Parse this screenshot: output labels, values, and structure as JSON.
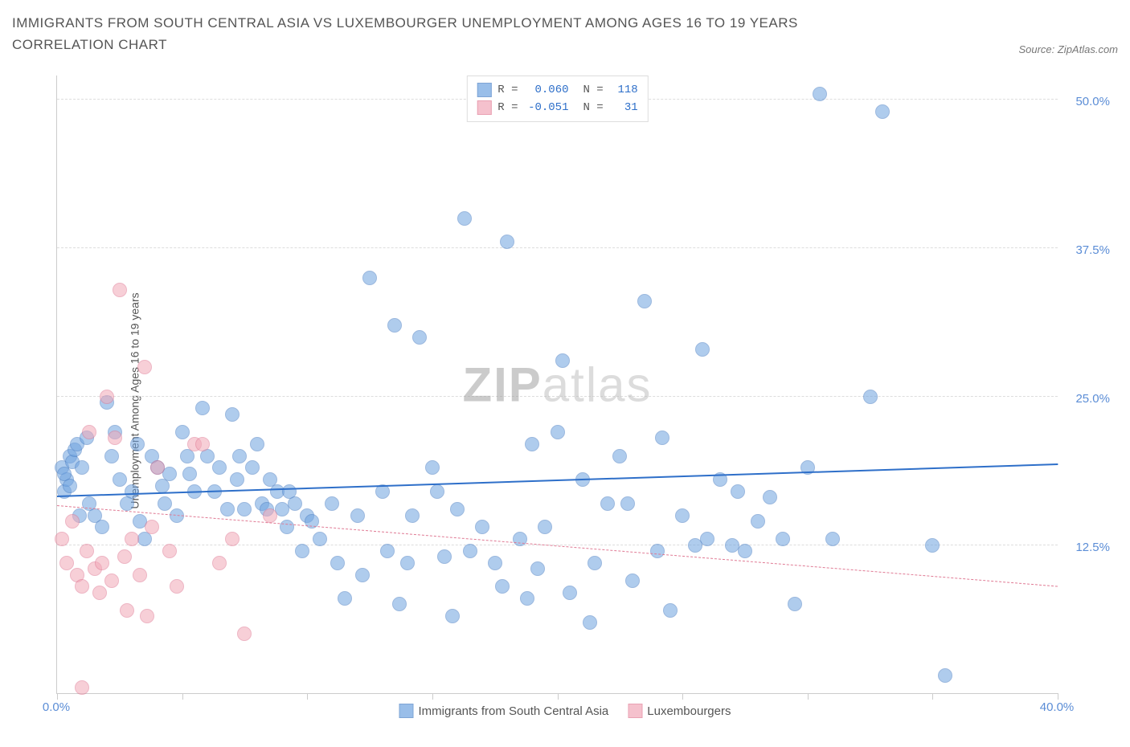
{
  "title": "IMMIGRANTS FROM SOUTH CENTRAL ASIA VS LUXEMBOURGER UNEMPLOYMENT AMONG AGES 16 TO 19 YEARS CORRELATION CHART",
  "source": "Source: ZipAtlas.com",
  "watermark_a": "ZIP",
  "watermark_b": "atlas",
  "chart": {
    "type": "scatter",
    "xlim": [
      0,
      40
    ],
    "ylim": [
      0,
      52
    ],
    "xticks": [
      0,
      5,
      10,
      15,
      20,
      25,
      30,
      35,
      40
    ],
    "xaxis_labels": [
      {
        "v": 0,
        "t": "0.0%"
      },
      {
        "v": 40,
        "t": "40.0%"
      }
    ],
    "y_gridlines": [
      12.5,
      25.0,
      37.5,
      50.0
    ],
    "yaxis_labels": [
      {
        "v": 12.5,
        "t": "12.5%"
      },
      {
        "v": 25.0,
        "t": "25.0%"
      },
      {
        "v": 37.5,
        "t": "37.5%"
      },
      {
        "v": 50.0,
        "t": "50.0%"
      }
    ],
    "ylabel": "Unemployment Among Ages 16 to 19 years",
    "marker_radius": 9,
    "marker_opacity": 0.55,
    "background_color": "#ffffff",
    "grid_color": "#dddddd",
    "series": [
      {
        "name": "Immigrants from South Central Asia",
        "color": "#6fa3e0",
        "border": "#4a7fc4",
        "R": "0.060",
        "N": "118",
        "trend": {
          "x1": 0,
          "y1": 16.5,
          "x2": 40,
          "y2": 19.2,
          "color": "#2e6fc9",
          "solid": true
        },
        "points": [
          [
            0.2,
            19
          ],
          [
            0.3,
            17
          ],
          [
            0.5,
            20
          ],
          [
            0.4,
            18
          ],
          [
            0.6,
            19.5
          ],
          [
            0.3,
            18.5
          ],
          [
            0.7,
            20.5
          ],
          [
            0.5,
            17.5
          ],
          [
            0.8,
            21
          ],
          [
            1.0,
            19
          ],
          [
            1.2,
            21.5
          ],
          [
            1.5,
            15
          ],
          [
            2.0,
            24.5
          ],
          [
            2.2,
            20
          ],
          [
            2.5,
            18
          ],
          [
            3.0,
            17
          ],
          [
            3.2,
            21
          ],
          [
            3.5,
            13
          ],
          [
            4.0,
            19
          ],
          [
            4.2,
            17.5
          ],
          [
            4.5,
            18.5
          ],
          [
            5.0,
            22
          ],
          [
            5.2,
            20
          ],
          [
            5.5,
            17
          ],
          [
            5.8,
            24
          ],
          [
            6.0,
            20
          ],
          [
            6.5,
            19
          ],
          [
            7.0,
            23.5
          ],
          [
            7.2,
            18
          ],
          [
            7.5,
            15.5
          ],
          [
            8.0,
            21
          ],
          [
            8.2,
            16
          ],
          [
            8.4,
            15.5
          ],
          [
            8.8,
            17
          ],
          [
            9.0,
            15.5
          ],
          [
            9.2,
            14
          ],
          [
            9.5,
            16
          ],
          [
            10.0,
            15
          ],
          [
            10.2,
            14.5
          ],
          [
            10.5,
            13
          ],
          [
            11.0,
            16
          ],
          [
            11.2,
            11
          ],
          [
            11.5,
            8
          ],
          [
            12.0,
            15
          ],
          [
            12.2,
            10
          ],
          [
            12.5,
            35
          ],
          [
            13.0,
            17
          ],
          [
            13.2,
            12
          ],
          [
            13.5,
            31
          ],
          [
            13.7,
            7.5
          ],
          [
            14.0,
            11
          ],
          [
            14.2,
            15
          ],
          [
            14.5,
            30
          ],
          [
            15.0,
            19
          ],
          [
            15.2,
            17
          ],
          [
            15.5,
            11.5
          ],
          [
            15.8,
            6.5
          ],
          [
            16.0,
            15.5
          ],
          [
            16.3,
            40
          ],
          [
            16.5,
            12
          ],
          [
            17.0,
            14
          ],
          [
            17.5,
            11
          ],
          [
            17.8,
            9
          ],
          [
            18.0,
            38
          ],
          [
            18.5,
            13
          ],
          [
            18.8,
            8
          ],
          [
            19.0,
            21
          ],
          [
            19.2,
            10.5
          ],
          [
            19.5,
            14
          ],
          [
            20.0,
            22
          ],
          [
            20.2,
            28
          ],
          [
            20.5,
            8.5
          ],
          [
            21.0,
            18
          ],
          [
            21.3,
            6
          ],
          [
            21.5,
            11
          ],
          [
            22.0,
            16
          ],
          [
            22.5,
            20
          ],
          [
            22.8,
            16
          ],
          [
            23.0,
            9.5
          ],
          [
            23.5,
            33
          ],
          [
            24.0,
            12
          ],
          [
            24.2,
            21.5
          ],
          [
            24.5,
            7
          ],
          [
            25.0,
            15
          ],
          [
            25.5,
            12.5
          ],
          [
            25.8,
            29
          ],
          [
            26.0,
            13
          ],
          [
            26.5,
            18
          ],
          [
            27.0,
            12.5
          ],
          [
            27.2,
            17
          ],
          [
            27.5,
            12
          ],
          [
            28.0,
            14.5
          ],
          [
            28.5,
            16.5
          ],
          [
            29.0,
            13
          ],
          [
            29.5,
            7.5
          ],
          [
            30.0,
            19
          ],
          [
            30.5,
            50.5
          ],
          [
            31.0,
            13
          ],
          [
            32.5,
            25
          ],
          [
            33.0,
            49
          ],
          [
            35.0,
            12.5
          ],
          [
            35.5,
            1.5
          ],
          [
            0.9,
            15
          ],
          [
            1.3,
            16
          ],
          [
            1.8,
            14
          ],
          [
            2.3,
            22
          ],
          [
            2.8,
            16
          ],
          [
            3.3,
            14.5
          ],
          [
            3.8,
            20
          ],
          [
            4.3,
            16
          ],
          [
            4.8,
            15
          ],
          [
            5.3,
            18.5
          ],
          [
            6.3,
            17
          ],
          [
            6.8,
            15.5
          ],
          [
            7.3,
            20
          ],
          [
            7.8,
            19
          ],
          [
            8.5,
            18
          ],
          [
            9.3,
            17
          ],
          [
            9.8,
            12
          ]
        ]
      },
      {
        "name": "Luxembourgers",
        "color": "#f2a8b8",
        "border": "#e07a94",
        "R": "-0.051",
        "N": "31",
        "trend": {
          "x1": 0,
          "y1": 15.8,
          "x2": 40,
          "y2": 9.0,
          "color": "#e07a94",
          "solid": false
        },
        "points": [
          [
            0.2,
            13
          ],
          [
            0.4,
            11
          ],
          [
            0.6,
            14.5
          ],
          [
            0.8,
            10
          ],
          [
            1.0,
            9
          ],
          [
            1.2,
            12
          ],
          [
            1.3,
            22
          ],
          [
            1.5,
            10.5
          ],
          [
            1.7,
            8.5
          ],
          [
            1.8,
            11
          ],
          [
            2.0,
            25
          ],
          [
            2.2,
            9.5
          ],
          [
            2.3,
            21.5
          ],
          [
            2.5,
            34
          ],
          [
            2.7,
            11.5
          ],
          [
            2.8,
            7
          ],
          [
            3.0,
            13
          ],
          [
            3.3,
            10
          ],
          [
            3.5,
            27.5
          ],
          [
            3.6,
            6.5
          ],
          [
            3.8,
            14
          ],
          [
            4.0,
            19
          ],
          [
            4.5,
            12
          ],
          [
            4.8,
            9
          ],
          [
            5.5,
            21
          ],
          [
            5.8,
            21
          ],
          [
            6.5,
            11
          ],
          [
            7.0,
            13
          ],
          [
            7.5,
            5
          ],
          [
            8.5,
            15
          ],
          [
            1.0,
            0.5
          ]
        ]
      }
    ],
    "legend_pos": "top-center"
  }
}
